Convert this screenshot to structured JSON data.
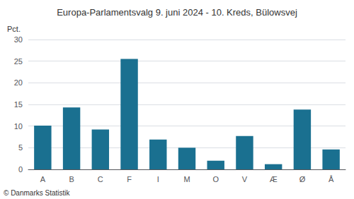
{
  "chart_data": {
    "type": "bar",
    "title": "Europa-Parlamentsvalg 9. juni 2024 - 10. Kreds, Bülowsvej",
    "ylabel": "Pct.",
    "annotations": [
      "© Danmarks Statistik"
    ],
    "categories": [
      "A",
      "B",
      "C",
      "F",
      "I",
      "M",
      "O",
      "V",
      "Æ",
      "Ø",
      "Å"
    ],
    "values": [
      10.1,
      14.3,
      9.2,
      25.5,
      6.9,
      5.0,
      2.0,
      7.7,
      1.2,
      13.8,
      4.6
    ],
    "color": "#1a7090",
    "ylim": [
      0,
      30
    ],
    "yticks": [
      0,
      5,
      10,
      15,
      20,
      25,
      30
    ],
    "grid": true
  }
}
